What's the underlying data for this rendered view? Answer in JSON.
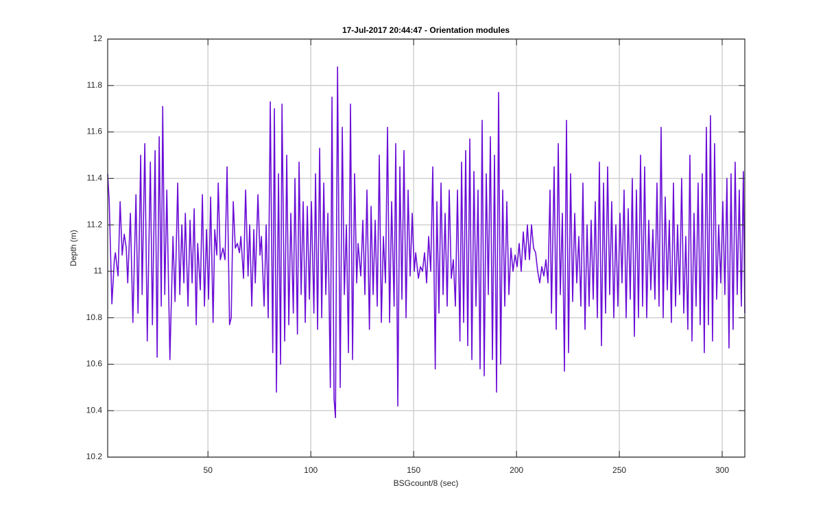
{
  "chart_data": {
    "type": "line",
    "title": "17-Jul-2017 20:44:47 - Orientation modules",
    "xlabel": "BSGcount/8 (sec)",
    "ylabel": "Depth (m)",
    "color": "#6a0dd6",
    "grid": true,
    "xlim": [
      1.25,
      311
    ],
    "ylim": [
      10.2,
      12
    ],
    "xticks": [
      50,
      100,
      150,
      200,
      250,
      300
    ],
    "yticks": [
      10.2,
      10.4,
      10.6,
      10.8,
      11,
      11.2,
      11.4,
      11.6,
      11.8,
      12
    ],
    "x": [
      1.25,
      2,
      3.3,
      4.5,
      5,
      6.3,
      7.3,
      8.3,
      9.3,
      10.3,
      11,
      12.3,
      13.5,
      15,
      16,
      17.3,
      18,
      19.3,
      20.5,
      22,
      23,
      24.3,
      25.3,
      26.3,
      27.3,
      28,
      29,
      30,
      31.5,
      33,
      34,
      35.3,
      36.3,
      37.3,
      38.3,
      39,
      40.3,
      41.3,
      42.3,
      43.3,
      44.3,
      45,
      46.3,
      47.3,
      48.3,
      49.3,
      50.3,
      51.3,
      52.5,
      53.3,
      54.3,
      55,
      56,
      57.3,
      58.3,
      59.3,
      60.5,
      61.3,
      62.3,
      63.3,
      64.3,
      65.3,
      66,
      67.3,
      68.3,
      69.5,
      70.3,
      71.3,
      72.3,
      73,
      74.3,
      75.3,
      76,
      77.3,
      78.3,
      79.3,
      80.3,
      81.5,
      82.3,
      83.3,
      84.3,
      85.3,
      86,
      87.3,
      88.3,
      89.3,
      90.3,
      91.5,
      92.3,
      93.5,
      94.3,
      95.3,
      96.3,
      97.3,
      98.3,
      99.3,
      100.3,
      101.5,
      102.3,
      103.3,
      104.3,
      105.3,
      106.3,
      107.3,
      108.3,
      109.5,
      110.3,
      111.3,
      112,
      113,
      114.3,
      115.3,
      116.3,
      117.3,
      118.3,
      119.3,
      120.3,
      121.3,
      122.3,
      123,
      124.3,
      125.3,
      126.3,
      127.3,
      128.5,
      129.3,
      130.3,
      131.3,
      132.3,
      133.3,
      134.3,
      135.3,
      136.3,
      137.3,
      138.3,
      139.3,
      140.5,
      141.3,
      142.3,
      143.3,
      144.3,
      145.3,
      146.3,
      147.3,
      148.3,
      149.3,
      150.3,
      151,
      152.3,
      153.3,
      154.3,
      155.3,
      156.3,
      157.3,
      158.3,
      159.3,
      160.5,
      161.3,
      162.3,
      163.3,
      164.3,
      165.3,
      166.3,
      167.3,
      168.3,
      169.3,
      170.3,
      171.3,
      172.5,
      173.3,
      174.3,
      175.3,
      176.3,
      177.3,
      178.3,
      179.3,
      180.3,
      181.3,
      182.3,
      183.3,
      184.3,
      185.3,
      186.3,
      187.3,
      188.3,
      189.3,
      190.3,
      191.3,
      192.3,
      193.3,
      194.3,
      195.3,
      196.3,
      197.3,
      198.3,
      199.3,
      200.3,
      201.3,
      202.3,
      203.3,
      204.3,
      205.3,
      206.3,
      207.3,
      208.3,
      209.3,
      210.3,
      211.3,
      212.3,
      213.3,
      214.3,
      215.3,
      216.3,
      217,
      218.3,
      219.3,
      220.3,
      221.3,
      222.3,
      223.3,
      224.3,
      225.3,
      226.3,
      227.3,
      228.3,
      229.3,
      230.3,
      231.3,
      232.3,
      233.3,
      234.3,
      235.3,
      236.3,
      237.3,
      238.3,
      239.3,
      240.3,
      241.3,
      242.3,
      243.3,
      244.3,
      245.3,
      246.3,
      247.3,
      248.3,
      249.3,
      250.3,
      251.3,
      252.3,
      253.3,
      254.3,
      255.3,
      256.3,
      257.3,
      258.3,
      259.3,
      260.3,
      261.3,
      262.3,
      263.3,
      264.3,
      265.3,
      266.3,
      267.3,
      268.3,
      269.3,
      270.3,
      271.3,
      272.3,
      273.3,
      274.3,
      275.3,
      276.3,
      277.3,
      278.3,
      279.3,
      280.3,
      281.3,
      282.3,
      283.3,
      284.3,
      285.3,
      286.3,
      287.3,
      288.3,
      289.3,
      290.3,
      291.3,
      292.3,
      293.3,
      294.3,
      295.3,
      296.3,
      297.3,
      298.3,
      299.3,
      300.3,
      301.3,
      302.3,
      303.3,
      304.3,
      305.3,
      306.3,
      307.3,
      308.3,
      309.3,
      310.3,
      311
    ],
    "values": [
      11.42,
      11.3,
      10.86,
      11.05,
      11.08,
      10.98,
      11.3,
      11.07,
      11.16,
      11.1,
      10.95,
      11.25,
      10.78,
      11.33,
      10.82,
      11.5,
      10.9,
      11.55,
      10.7,
      11.47,
      10.77,
      11.52,
      10.63,
      11.58,
      10.85,
      11.71,
      10.9,
      11.35,
      10.62,
      11.15,
      10.87,
      11.38,
      10.9,
      11.2,
      10.95,
      11.25,
      10.85,
      11.22,
      10.95,
      11.27,
      10.77,
      11.12,
      10.92,
      11.33,
      10.85,
      11.18,
      10.88,
      11.32,
      10.78,
      11.18,
      11.07,
      11.38,
      11.05,
      11.1,
      11.05,
      11.45,
      10.77,
      10.8,
      11.3,
      11.1,
      11.12,
      11.08,
      11.15,
      10.97,
      11.35,
      10.98,
      11.2,
      10.85,
      11.18,
      10.95,
      11.33,
      11.07,
      11.15,
      10.85,
      11.2,
      10.8,
      11.73,
      10.65,
      11.7,
      10.48,
      11.42,
      10.6,
      11.72,
      10.7,
      11.5,
      10.77,
      11.25,
      10.82,
      11.4,
      10.73,
      11.47,
      10.9,
      11.3,
      10.78,
      11.28,
      10.88,
      11.3,
      10.82,
      11.42,
      10.75,
      11.53,
      10.8,
      11.38,
      10.9,
      11.25,
      10.5,
      11.75,
      10.45,
      10.37,
      11.88,
      10.5,
      11.62,
      10.9,
      11.2,
      10.65,
      11.72,
      10.62,
      11.42,
      10.95,
      11.12,
      10.98,
      11.22,
      10.9,
      11.35,
      10.75,
      11.28,
      10.9,
      11.22,
      10.85,
      11.5,
      10.78,
      11.15,
      10.95,
      11.62,
      10.78,
      11.3,
      10.85,
      11.55,
      10.42,
      11.45,
      10.88,
      11.52,
      10.8,
      11.35,
      10.98,
      11.25,
      11.0,
      11.08,
      10.97,
      11.02,
      11.0,
      11.08,
      10.95,
      11.15,
      11.0,
      11.45,
      10.58,
      11.3,
      10.82,
      11.38,
      10.9,
      11.25,
      10.85,
      11.35,
      10.97,
      11.05,
      10.85,
      11.35,
      10.7,
      11.47,
      10.78,
      11.52,
      10.68,
      11.57,
      10.62,
      11.43,
      10.85,
      11.35,
      10.58,
      11.65,
      10.55,
      11.42,
      10.9,
      11.58,
      10.62,
      11.5,
      10.48,
      11.77,
      10.6,
      11.35,
      10.85,
      11.3,
      10.9,
      11.1,
      11.0,
      11.07,
      11.02,
      11.12,
      11.0,
      11.17,
      11.05,
      11.2,
      11.05,
      11.2,
      11.1,
      11.08,
      11.0,
      10.95,
      11.02,
      10.98,
      11.05,
      10.95,
      11.35,
      10.82,
      11.45,
      10.75,
      11.55,
      10.9,
      11.25,
      10.57,
      11.65,
      10.65,
      11.42,
      10.87,
      11.25,
      10.95,
      11.15,
      10.85,
      11.38,
      10.75,
      11.2,
      10.85,
      11.22,
      10.88,
      11.3,
      10.8,
      11.47,
      10.68,
      11.38,
      10.82,
      11.45,
      10.9,
      11.3,
      10.8,
      11.2,
      10.85,
      11.25,
      10.95,
      11.35,
      10.8,
      11.27,
      10.88,
      11.4,
      10.72,
      11.35,
      10.8,
      11.5,
      10.85,
      11.45,
      10.8,
      11.22,
      10.92,
      11.18,
      10.88,
      11.38,
      10.85,
      11.62,
      10.8,
      11.32,
      10.92,
      11.22,
      10.78,
      11.38,
      10.85,
      11.2,
      10.9,
      11.4,
      10.82,
      11.15,
      10.75,
      11.5,
      10.7,
      11.25,
      10.85,
      11.38,
      10.77,
      11.42,
      10.65,
      11.62,
      10.77,
      11.67,
      10.7,
      11.55,
      10.88,
      11.2,
      10.95,
      11.3,
      10.9,
      11.4,
      10.67,
      11.42,
      10.75,
      11.47,
      10.9,
      11.35,
      10.85,
      11.43,
      10.82
    ]
  }
}
